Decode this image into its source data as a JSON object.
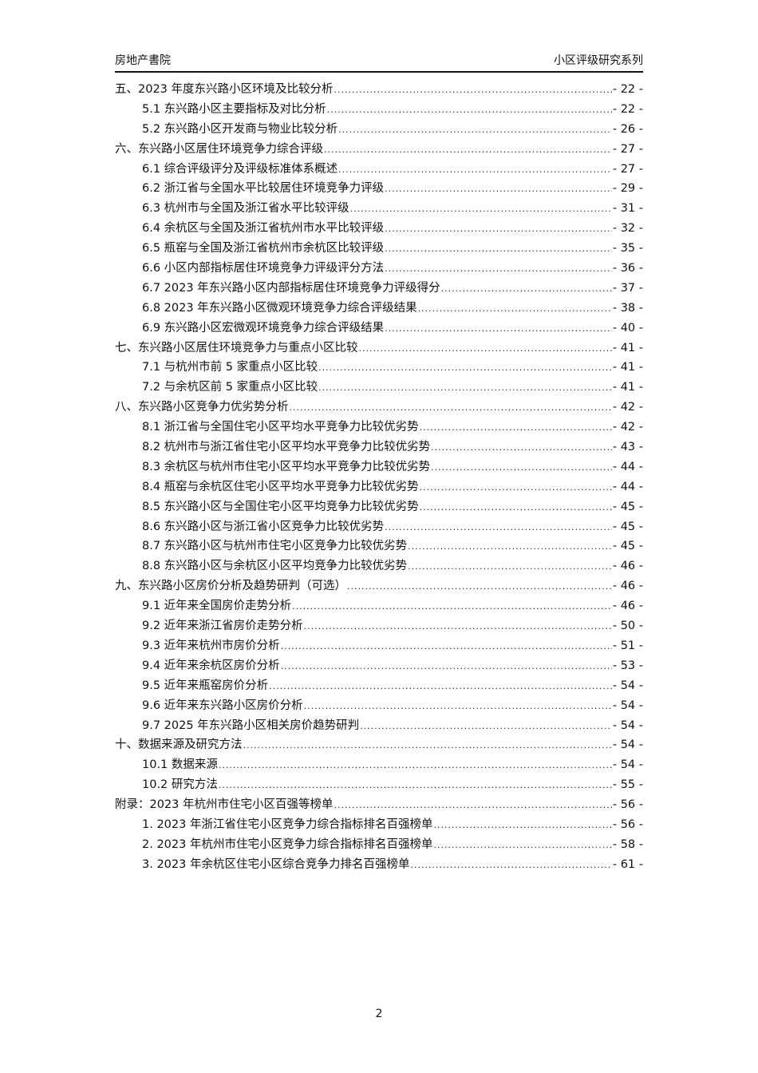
{
  "header": {
    "left": "房地产書院",
    "right": "小区评级研究系列"
  },
  "toc": [
    {
      "level": 1,
      "text": "五、2023 年度东兴路小区环境及比较分析",
      "page": "- 22 -"
    },
    {
      "level": 2,
      "text": "5.1 东兴路小区主要指标及对比分析",
      "page": "- 22 -"
    },
    {
      "level": 2,
      "text": "5.2 东兴路小区开发商与物业比较分析",
      "page": "- 26 -"
    },
    {
      "level": 1,
      "text": "六、东兴路小区居住环境竞争力综合评级",
      "page": "- 27 -"
    },
    {
      "level": 2,
      "text": "6.1 综合评级评分及评级标准体系概述",
      "page": "- 27 -"
    },
    {
      "level": 2,
      "text": "6.2 浙江省与全国水平比较居住环境竞争力评级",
      "page": "- 29 -"
    },
    {
      "level": 2,
      "text": "6.3 杭州市与全国及浙江省水平比较评级",
      "page": "- 31 -"
    },
    {
      "level": 2,
      "text": "6.4 余杭区与全国及浙江省杭州市水平比较评级",
      "page": "- 32 -"
    },
    {
      "level": 2,
      "text": "6.5 瓶窑与全国及浙江省杭州市余杭区比较评级",
      "page": "- 35 -"
    },
    {
      "level": 2,
      "text": "6.6 小区内部指标居住环境竞争力评级评分方法",
      "page": "- 36 -"
    },
    {
      "level": 2,
      "text": "6.7 2023 年东兴路小区内部指标居住环境竞争力评级得分",
      "page": "- 37 -"
    },
    {
      "level": 2,
      "text": "6.8 2023 年东兴路小区微观环境竞争力综合评级结果",
      "page": "- 38 -"
    },
    {
      "level": 2,
      "text": "6.9 东兴路小区宏微观环境竞争力综合评级结果",
      "page": "- 40 -"
    },
    {
      "level": 1,
      "text": "七、东兴路小区居住环境竞争力与重点小区比较",
      "page": "- 41 -"
    },
    {
      "level": 2,
      "text": "7.1 与杭州市前 5 家重点小区比较",
      "page": "- 41 -"
    },
    {
      "level": 2,
      "text": "7.2 与余杭区前 5 家重点小区比较",
      "page": "- 41 -"
    },
    {
      "level": 1,
      "text": "八、东兴路小区竞争力优劣势分析",
      "page": "- 42 -"
    },
    {
      "level": 2,
      "text": "8.1 浙江省与全国住宅小区平均水平竞争力比较优劣势",
      "page": "- 42 -"
    },
    {
      "level": 2,
      "text": "8.2 杭州市与浙江省住宅小区平均水平竞争力比较优劣势",
      "page": "- 43 -"
    },
    {
      "level": 2,
      "text": "8.3 余杭区与杭州市住宅小区平均水平竞争力比较优劣势",
      "page": "- 44 -"
    },
    {
      "level": 2,
      "text": "8.4 瓶窑与余杭区住宅小区平均水平竞争力比较优劣势",
      "page": "- 44 -"
    },
    {
      "level": 2,
      "text": "8.5 东兴路小区与全国住宅小区平均竞争力比较优劣势",
      "page": "- 45 -"
    },
    {
      "level": 2,
      "text": "8.6 东兴路小区与浙江省小区竞争力比较优劣势",
      "page": "- 45 -"
    },
    {
      "level": 2,
      "text": "8.7 东兴路小区与杭州市住宅小区竞争力比较优劣势",
      "page": "- 45 -"
    },
    {
      "level": 2,
      "text": "8.8 东兴路小区与余杭区小区平均竞争力比较优劣势",
      "page": "- 46 -"
    },
    {
      "level": 1,
      "text": "九、东兴路小区房价分析及趋势研判（可选）",
      "page": "- 46 -"
    },
    {
      "level": 2,
      "text": "9.1 近年来全国房价走势分析",
      "page": "- 46 -"
    },
    {
      "level": 2,
      "text": "9.2 近年来浙江省房价走势分析",
      "page": "- 50 -"
    },
    {
      "level": 2,
      "text": "9.3 近年来杭州市房价分析",
      "page": "- 51 -"
    },
    {
      "level": 2,
      "text": "9.4 近年来余杭区房价分析",
      "page": "- 53 -"
    },
    {
      "level": 2,
      "text": "9.5 近年来瓶窑房价分析",
      "page": "- 54 -"
    },
    {
      "level": 2,
      "text": "9.6 近年来东兴路小区房价分析",
      "page": "- 54 -"
    },
    {
      "level": 2,
      "text": "9.7 2025 年东兴路小区相关房价趋势研判",
      "page": "- 54 -"
    },
    {
      "level": 1,
      "text": "十、数据来源及研究方法",
      "page": "- 54 -"
    },
    {
      "level": 2,
      "text": "10.1 数据来源",
      "page": "- 54 -"
    },
    {
      "level": 2,
      "text": "10.2 研究方法",
      "page": "- 55 -"
    },
    {
      "level": 1,
      "text": "附录：2023 年杭州市住宅小区百强等榜单",
      "page": "- 56 -"
    },
    {
      "level": 2,
      "text": "1.  2023 年浙江省住宅小区竞争力综合指标排名百强榜单",
      "page": "- 56 -"
    },
    {
      "level": 2,
      "text": "2.  2023 年杭州市住宅小区竞争力综合指标排名百强榜单",
      "page": "- 58 -"
    },
    {
      "level": 2,
      "text": "3.  2023 年余杭区住宅小区综合竞争力排名百强榜单",
      "page": "- 61 -"
    }
  ],
  "footer": {
    "page_number": "2"
  }
}
